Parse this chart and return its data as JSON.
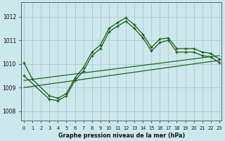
{
  "title": "Graphe pression niveau de la mer (hPa)",
  "bg_color": "#cce8ec",
  "grid_color": "#aacccc",
  "line_color": "#1a5c1a",
  "x_ticks": [
    0,
    1,
    2,
    3,
    4,
    5,
    6,
    7,
    8,
    9,
    10,
    11,
    12,
    13,
    14,
    15,
    16,
    17,
    18,
    19,
    20,
    21,
    22,
    23
  ],
  "ylim": [
    1007.6,
    1012.6
  ],
  "xlim": [
    -0.3,
    23.3
  ],
  "yticks": [
    1008,
    1009,
    1010,
    1011,
    1012
  ],
  "series_jagged": {
    "x": [
      0,
      1,
      3,
      4,
      5,
      6,
      7,
      8,
      9,
      10,
      11,
      12,
      13,
      14,
      15,
      16,
      17,
      18,
      19,
      20,
      21,
      22,
      23
    ],
    "y": [
      1010.05,
      1009.35,
      1008.65,
      1008.55,
      1008.75,
      1009.4,
      1009.85,
      1010.5,
      1010.8,
      1011.5,
      1011.75,
      1011.95,
      1011.65,
      1011.25,
      1010.7,
      1011.05,
      1011.1,
      1010.65,
      1010.65,
      1010.65,
      1010.5,
      1010.45,
      1010.2
    ]
  },
  "series_low": {
    "x": [
      0,
      23
    ],
    "y": [
      1009.0,
      1010.15
    ]
  },
  "series_mid": {
    "x": [
      0,
      23
    ],
    "y": [
      1009.3,
      1010.35
    ]
  },
  "series_upper": {
    "x": [
      0,
      3,
      4,
      5,
      6,
      7,
      8,
      9,
      10,
      11,
      12,
      13,
      14,
      15,
      16,
      17,
      18,
      19,
      20,
      21,
      22,
      23
    ],
    "y": [
      1009.5,
      1008.5,
      1008.45,
      1008.65,
      1009.3,
      1009.7,
      1010.35,
      1010.65,
      1011.35,
      1011.6,
      1011.8,
      1011.5,
      1011.1,
      1010.55,
      1010.9,
      1011.0,
      1010.5,
      1010.5,
      1010.5,
      1010.35,
      1010.3,
      1010.05
    ]
  }
}
